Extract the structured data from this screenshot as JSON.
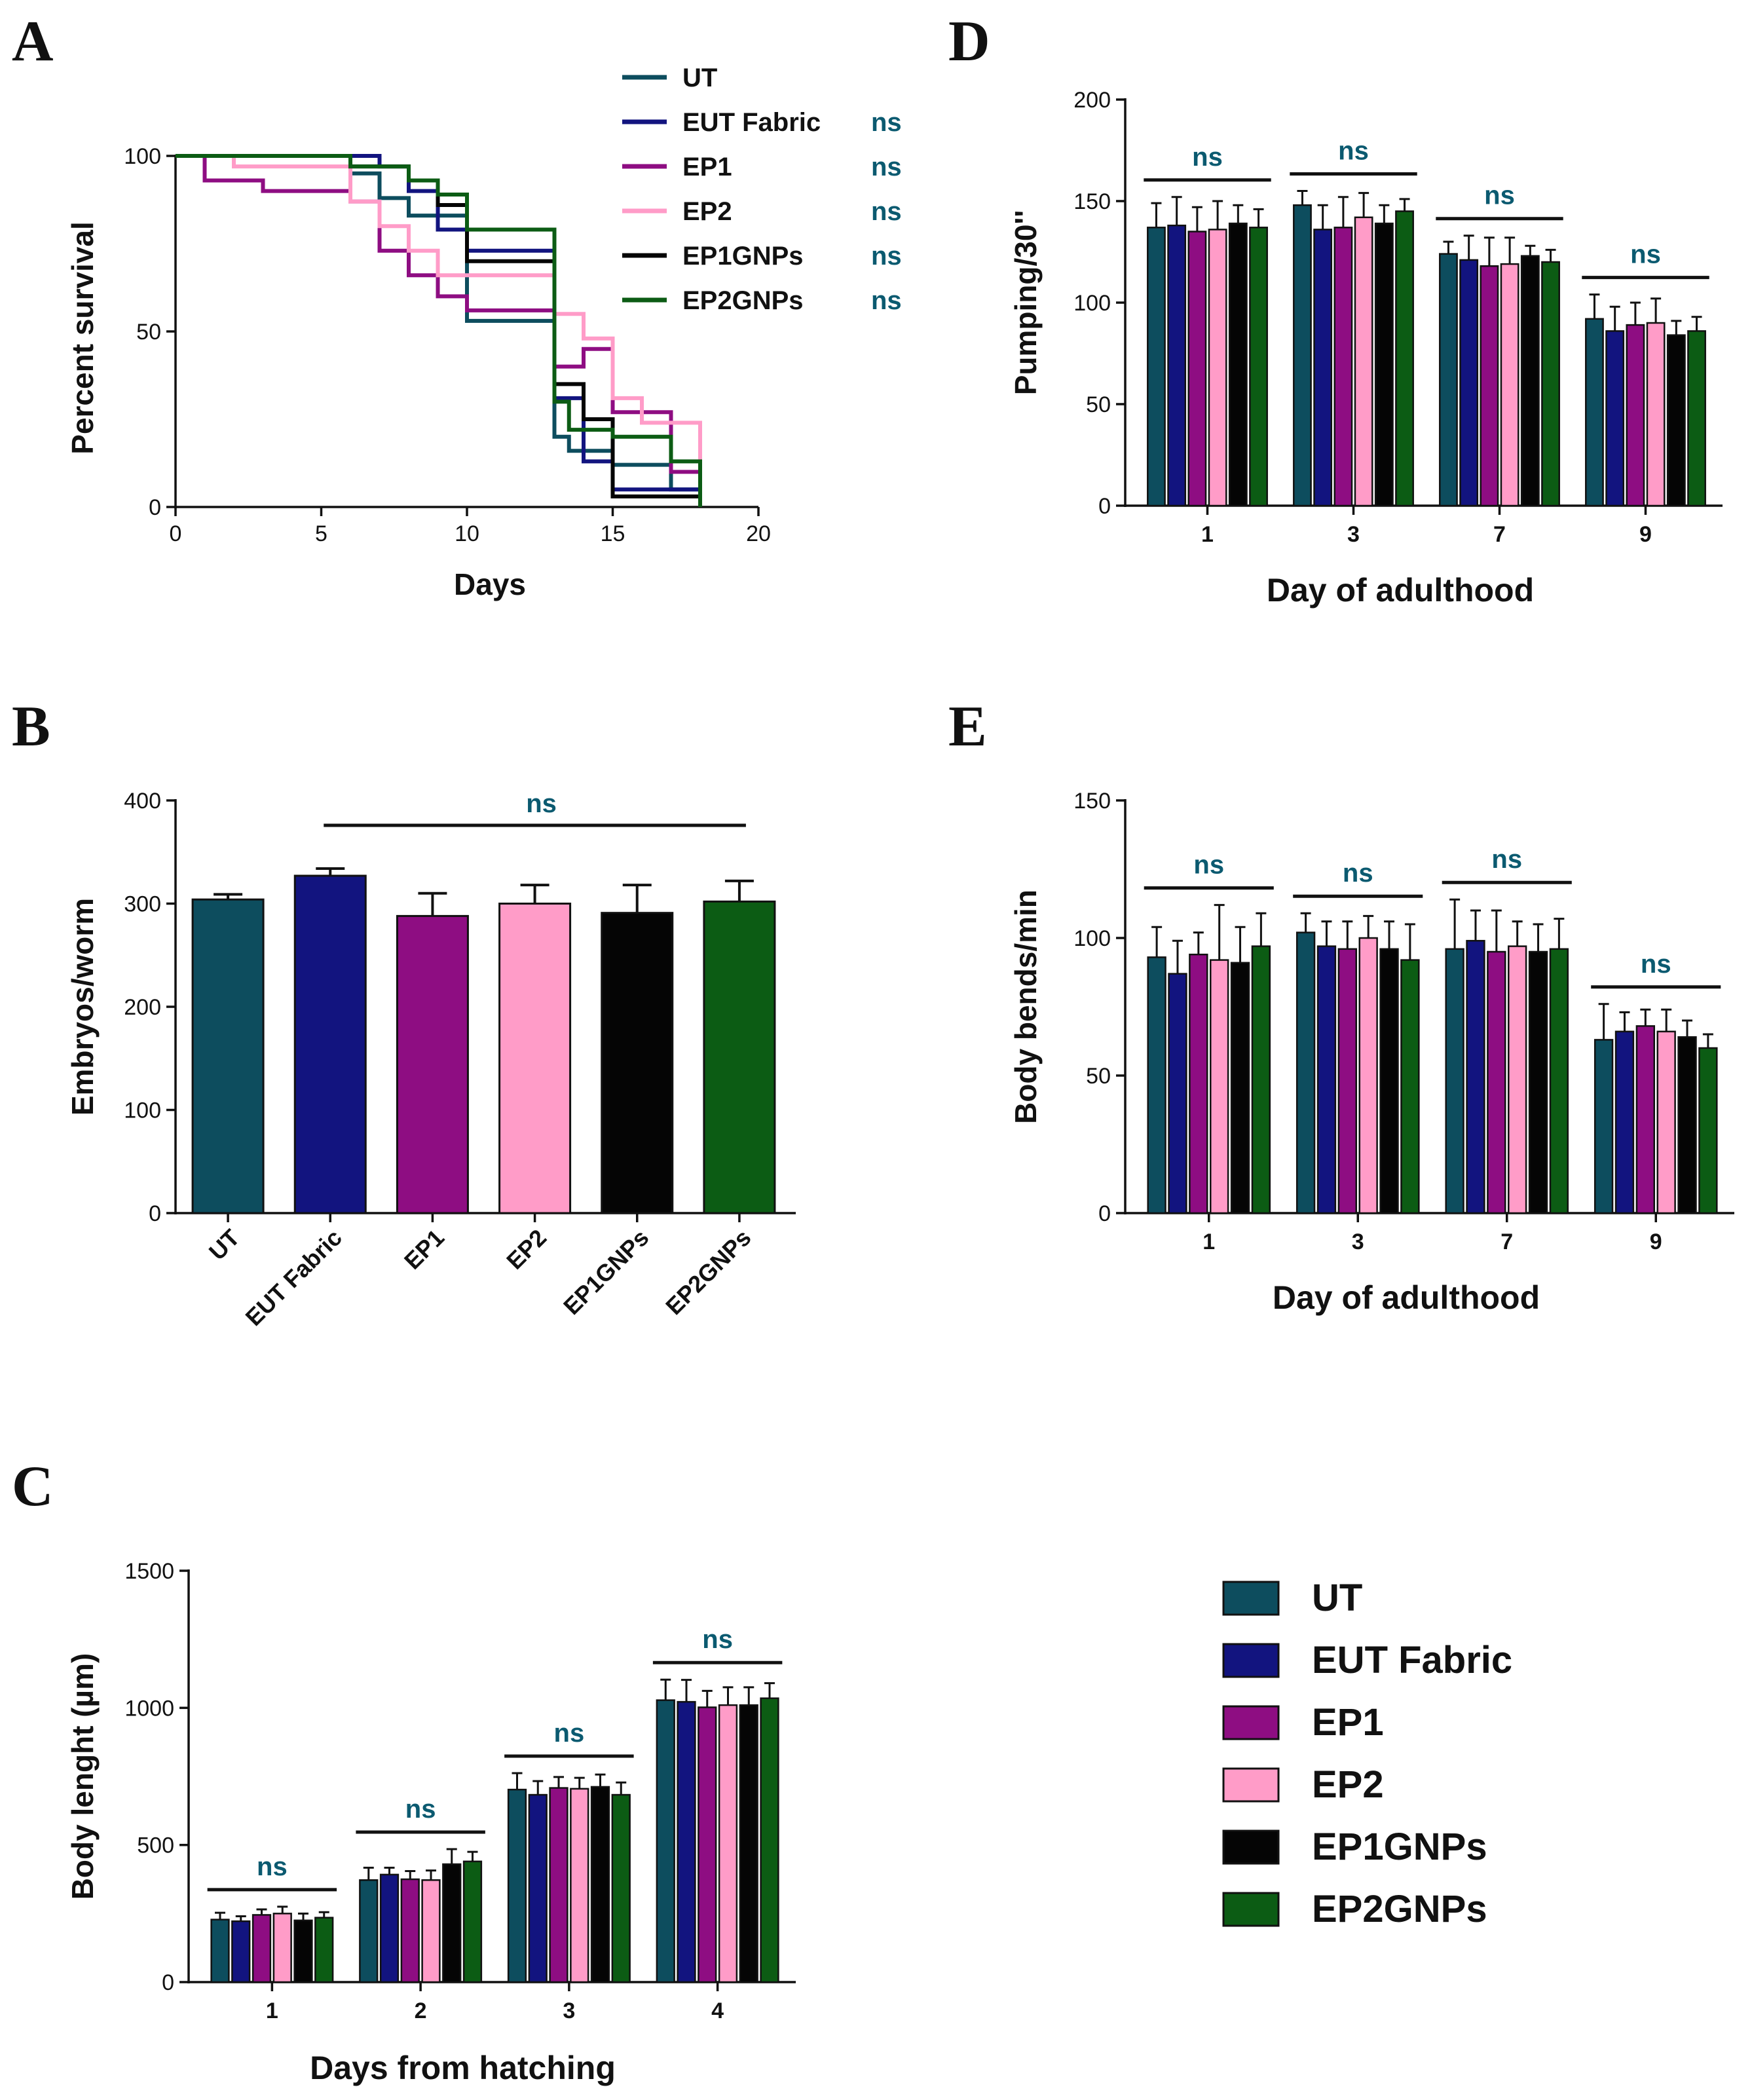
{
  "groups": [
    {
      "name": "UT",
      "color": "#0d4d5e"
    },
    {
      "name": "EUT Fabric",
      "color": "#12147f"
    },
    {
      "name": "EP1",
      "color": "#8e0d82"
    },
    {
      "name": "EP2",
      "color": "#ff9cc8"
    },
    {
      "name": "EP1GNPs",
      "color": "#050505"
    },
    {
      "name": "EP2GNPs",
      "color": "#0c5c14"
    }
  ],
  "ns_color": "#0b5a70",
  "legend_labels": [
    "UT",
    "EUT Fabric",
    "EP1",
    "EP2",
    "EP1GNPs",
    "EP2GNPs"
  ],
  "chart_data": [
    {
      "panel": "A",
      "type": "line",
      "step": true,
      "xlabel": "Days",
      "ylabel": "Percent survival",
      "xlim": [
        0,
        20
      ],
      "ylim": [
        0,
        100
      ],
      "xticks": [
        0,
        5,
        10,
        15,
        20
      ],
      "yticks": [
        0,
        50,
        100
      ],
      "legend": "top-right",
      "significance": [
        "",
        "ns",
        "ns",
        "ns",
        "ns",
        "ns"
      ],
      "series": [
        {
          "name": "UT",
          "x": [
            0,
            6,
            7,
            8,
            10,
            13,
            13.5,
            15,
            17,
            18
          ],
          "y": [
            100,
            95,
            88,
            83,
            53,
            20,
            16,
            12,
            5,
            0
          ]
        },
        {
          "name": "EUT Fabric",
          "x": [
            0,
            6,
            7,
            8,
            9,
            10,
            13,
            14,
            15,
            18
          ],
          "y": [
            100,
            100,
            97,
            90,
            79,
            73,
            31,
            13,
            5,
            0
          ]
        },
        {
          "name": "EP1",
          "x": [
            0,
            1,
            3,
            6,
            7,
            8,
            9,
            10,
            13,
            14,
            15,
            17,
            18
          ],
          "y": [
            100,
            93,
            90,
            87,
            73,
            66,
            60,
            56,
            40,
            45,
            27,
            10,
            0
          ]
        },
        {
          "name": "EP2",
          "x": [
            0,
            2,
            6,
            7,
            8,
            9,
            13,
            14,
            15,
            16,
            18
          ],
          "y": [
            100,
            97,
            87,
            80,
            73,
            66,
            55,
            48,
            31,
            24,
            0
          ]
        },
        {
          "name": "EP1GNPs",
          "x": [
            0,
            6,
            8,
            9,
            10,
            13,
            14,
            15,
            17,
            18
          ],
          "y": [
            100,
            97,
            93,
            86,
            70,
            35,
            25,
            3,
            3,
            0
          ]
        },
        {
          "name": "EP2GNPs",
          "x": [
            0,
            6,
            8,
            9,
            10,
            13,
            13.5,
            15,
            17,
            18
          ],
          "y": [
            100,
            97,
            93,
            89,
            79,
            30,
            22,
            20,
            13,
            0
          ]
        }
      ]
    },
    {
      "panel": "B",
      "type": "bar",
      "ylabel": "Embryos/worm",
      "xlabel": "",
      "categories": [
        "UT",
        "EUT Fabric",
        "EP1",
        "EP2",
        "EP1GNPs",
        "EP2GNPs"
      ],
      "values": [
        304,
        327,
        288,
        300,
        291,
        302
      ],
      "errors": [
        5,
        7,
        22,
        18,
        27,
        20
      ],
      "ylim": [
        0,
        400
      ],
      "yticks": [
        0,
        100,
        200,
        300,
        400
      ],
      "significance": {
        "label": "ns",
        "from": "EUT Fabric",
        "to": "EP2GNPs"
      }
    },
    {
      "panel": "C",
      "type": "bar",
      "xlabel": "Days from hatching",
      "ylabel": "Body lenght (µm)",
      "categories": [
        "1",
        "2",
        "3",
        "4"
      ],
      "ylim": [
        0,
        1500
      ],
      "yticks": [
        0,
        500,
        1000,
        1500
      ],
      "significance_label": "ns",
      "series": [
        {
          "name": "UT",
          "values": [
            228,
            372,
            702,
            1028
          ],
          "errors": [
            25,
            45,
            60,
            75
          ]
        },
        {
          "name": "EUT Fabric",
          "values": [
            222,
            392,
            683,
            1022
          ],
          "errors": [
            18,
            25,
            50,
            80
          ]
        },
        {
          "name": "EP1",
          "values": [
            245,
            375,
            708,
            1002
          ],
          "errors": [
            20,
            30,
            40,
            60
          ]
        },
        {
          "name": "EP2",
          "values": [
            250,
            372,
            705,
            1010
          ],
          "errors": [
            25,
            35,
            40,
            65
          ]
        },
        {
          "name": "EP1GNPs",
          "values": [
            225,
            430,
            712,
            1010
          ],
          "errors": [
            25,
            55,
            45,
            65
          ]
        },
        {
          "name": "EP2GNPs",
          "values": [
            235,
            440,
            683,
            1035
          ],
          "errors": [
            20,
            35,
            45,
            55
          ]
        }
      ]
    },
    {
      "panel": "D",
      "type": "bar",
      "xlabel": "Day of adulthood",
      "ylabel": "Pumping/30''",
      "categories": [
        "1",
        "3",
        "7",
        "9"
      ],
      "ylim": [
        0,
        200
      ],
      "yticks": [
        0,
        50,
        100,
        150,
        200
      ],
      "significance_label": "ns",
      "series": [
        {
          "name": "UT",
          "values": [
            137,
            148,
            124,
            92
          ],
          "errors": [
            12,
            7,
            6,
            12
          ]
        },
        {
          "name": "EUT Fabric",
          "values": [
            138,
            136,
            121,
            86
          ],
          "errors": [
            14,
            12,
            12,
            12
          ]
        },
        {
          "name": "EP1",
          "values": [
            135,
            137,
            118,
            89
          ],
          "errors": [
            12,
            15,
            14,
            11
          ]
        },
        {
          "name": "EP2",
          "values": [
            136,
            142,
            119,
            90
          ],
          "errors": [
            14,
            12,
            13,
            12
          ]
        },
        {
          "name": "EP1GNPs",
          "values": [
            139,
            139,
            123,
            84
          ],
          "errors": [
            9,
            9,
            5,
            7
          ]
        },
        {
          "name": "EP2GNPs",
          "values": [
            137,
            145,
            120,
            86
          ],
          "errors": [
            9,
            6,
            6,
            7
          ]
        }
      ]
    },
    {
      "panel": "E",
      "type": "bar",
      "xlabel": "Day of adulthood",
      "ylabel": "Body bends/min",
      "categories": [
        "1",
        "3",
        "7",
        "9"
      ],
      "ylim": [
        0,
        150
      ],
      "yticks": [
        0,
        50,
        100,
        150
      ],
      "significance_label": "ns",
      "series": [
        {
          "name": "UT",
          "values": [
            93,
            102,
            96,
            63
          ],
          "errors": [
            11,
            7,
            18,
            13
          ]
        },
        {
          "name": "EUT Fabric",
          "values": [
            87,
            97,
            99,
            66
          ],
          "errors": [
            12,
            9,
            11,
            7
          ]
        },
        {
          "name": "EP1",
          "values": [
            94,
            96,
            95,
            68
          ],
          "errors": [
            8,
            10,
            15,
            6
          ]
        },
        {
          "name": "EP2",
          "values": [
            92,
            100,
            97,
            66
          ],
          "errors": [
            20,
            8,
            9,
            8
          ]
        },
        {
          "name": "EP1GNPs",
          "values": [
            91,
            96,
            95,
            64
          ],
          "errors": [
            13,
            10,
            10,
            6
          ]
        },
        {
          "name": "EP2GNPs",
          "values": [
            97,
            92,
            96,
            60
          ],
          "errors": [
            12,
            13,
            11,
            5
          ]
        }
      ]
    }
  ]
}
